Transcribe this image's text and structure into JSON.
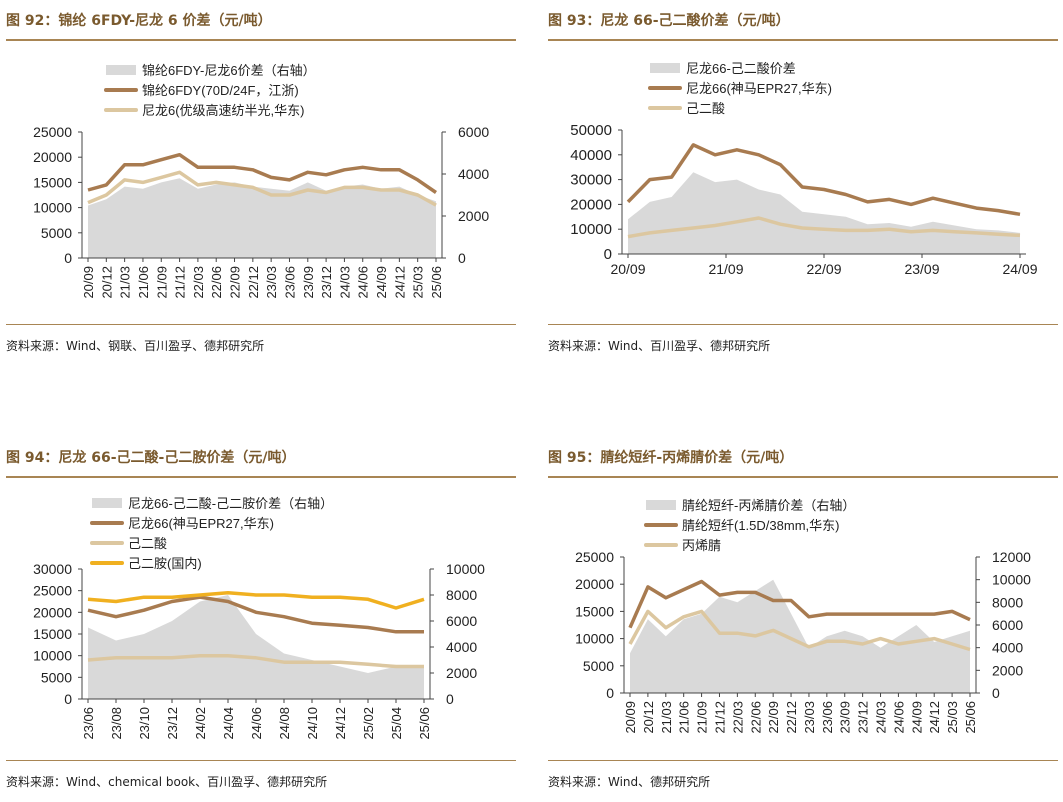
{
  "panels": [
    {
      "title": "图 92：锦纶 6FDY-尼龙 6 价差（元/吨）",
      "source": "资料来源：Wind、钢联、百川盈孚、德邦研究所",
      "chart_data": {
        "type": "line",
        "legend": [
          "锦纶6FDY-尼龙6价差（右轴）",
          "锦纶6FDY(70D/24F，江浙)",
          "尼龙6(优级高速纺半光,华东)"
        ],
        "left_axis": {
          "ylim": [
            0,
            25000
          ],
          "ticks": [
            "0",
            "5000",
            "10000",
            "15000",
            "20000",
            "25000"
          ]
        },
        "right_axis": {
          "ylim": [
            0,
            6000
          ],
          "ticks": [
            "0",
            "2000",
            "4000",
            "6000"
          ]
        },
        "x_ticks": [
          "20/09",
          "20/12",
          "21/03",
          "21/06",
          "21/09",
          "21/12",
          "22/03",
          "22/06",
          "22/09",
          "22/12",
          "23/03",
          "23/06",
          "23/09",
          "23/12",
          "24/03",
          "24/06",
          "24/09",
          "24/12",
          "25/03",
          "25/06"
        ],
        "series": [
          {
            "name": "锦纶6FDY(70D/24F，江浙)",
            "axis": "left",
            "color": "#a87b50",
            "values": [
              13500,
              14500,
              18500,
              18500,
              19500,
              20500,
              18000,
              18000,
              18000,
              17500,
              16000,
              15500,
              17000,
              16500,
              17500,
              18000,
              17500,
              17500,
              15500,
              13000
            ]
          },
          {
            "name": "尼龙6(优级高速纺半光,华东)",
            "axis": "left",
            "color": "#dcc7a0",
            "values": [
              11000,
              12500,
              15500,
              15000,
              16000,
              17000,
              14500,
              15000,
              14500,
              14000,
              12500,
              12500,
              13500,
              13000,
              14000,
              14000,
              13500,
              13500,
              12500,
              10500
            ]
          },
          {
            "name": "锦纶6FDY-尼龙6价差（右轴）",
            "axis": "right",
            "type": "area",
            "color": "#d9d9d9",
            "values": [
              2500,
              2800,
              3400,
              3300,
              3600,
              3800,
              3300,
              3500,
              3600,
              3400,
              3300,
              3200,
              3600,
              3200,
              3400,
              3500,
              3300,
              3400,
              3000,
              2700
            ]
          }
        ]
      }
    },
    {
      "title": "图 93：尼龙 66-己二酸价差（元/吨）",
      "source": "资料来源：Wind、百川盈孚、德邦研究所",
      "chart_data": {
        "type": "line",
        "legend": [
          "尼龙66-己二酸价差",
          "尼龙66(神马EPR27,华东)",
          "己二酸"
        ],
        "left_axis": {
          "ylim": [
            0,
            50000
          ],
          "ticks": [
            "0",
            "10000",
            "20000",
            "30000",
            "40000",
            "50000"
          ]
        },
        "x_ticks": [
          "20/09",
          "21/09",
          "22/09",
          "23/09",
          "24/09"
        ],
        "series": [
          {
            "name": "尼龙66(神马EPR27,华东)",
            "axis": "left",
            "color": "#a87b50",
            "values": [
              21000,
              30000,
              31000,
              44000,
              40000,
              42000,
              40000,
              36000,
              27000,
              26000,
              24000,
              21000,
              22000,
              20000,
              22500,
              20500,
              18500,
              17500,
              16000
            ]
          },
          {
            "name": "己二酸",
            "axis": "left",
            "color": "#dcc7a0",
            "values": [
              7000,
              8500,
              9500,
              10500,
              11500,
              13000,
              14500,
              12000,
              10500,
              10000,
              9500,
              9500,
              10000,
              9000,
              9500,
              9000,
              8500,
              8000,
              7500
            ]
          },
          {
            "name": "尼龙66-己二酸价差",
            "axis": "left",
            "type": "area",
            "color": "#d9d9d9",
            "values": [
              14000,
              21000,
              23000,
              33000,
              29000,
              30000,
              26000,
              24000,
              17000,
              16000,
              15000,
              12000,
              12500,
              11000,
              13000,
              11500,
              10000,
              9500,
              8500
            ]
          }
        ]
      }
    },
    {
      "title": "图 94：尼龙 66-己二酸-己二胺价差（元/吨）",
      "source": "资料来源：Wind、chemical book、百川盈孚、德邦研究所",
      "chart_data": {
        "type": "line",
        "legend": [
          "尼龙66-己二酸-己二胺价差（右轴）",
          "尼龙66(神马EPR27,华东)",
          "己二酸",
          "己二胺(国内)"
        ],
        "left_axis": {
          "ylim": [
            0,
            30000
          ],
          "ticks": [
            "0",
            "5000",
            "10000",
            "15000",
            "20000",
            "25000",
            "30000"
          ]
        },
        "right_axis": {
          "ylim": [
            0,
            10000
          ],
          "ticks": [
            "0",
            "2000",
            "4000",
            "6000",
            "8000",
            "10000"
          ]
        },
        "x_ticks": [
          "23/06",
          "23/08",
          "23/10",
          "23/12",
          "24/02",
          "24/04",
          "24/06",
          "24/08",
          "24/10",
          "24/12",
          "25/02",
          "25/04",
          "25/06"
        ],
        "series": [
          {
            "name": "尼龙66(神马EPR27,华东)",
            "axis": "left",
            "color": "#a87b50",
            "values": [
              20500,
              19000,
              20500,
              22500,
              23500,
              22500,
              20000,
              19000,
              17500,
              17000,
              16500,
              15500,
              15500
            ]
          },
          {
            "name": "己二酸",
            "axis": "left",
            "color": "#dcc7a0",
            "values": [
              9000,
              9500,
              9500,
              9500,
              10000,
              10000,
              9500,
              8500,
              8500,
              8500,
              8000,
              7500,
              7500
            ]
          },
          {
            "name": "己二胺(国内)",
            "axis": "left",
            "color": "#f0b020",
            "values": [
              23000,
              22500,
              23500,
              23500,
              24000,
              24500,
              24000,
              24000,
              23500,
              23500,
              23000,
              21000,
              23000
            ]
          },
          {
            "name": "尼龙66-己二酸-己二胺价差（右轴）",
            "axis": "right",
            "type": "area",
            "color": "#d9d9d9",
            "values": [
              5500,
              4500,
              5000,
              6000,
              7500,
              8000,
              5000,
              3500,
              3000,
              2500,
              2000,
              2500,
              2500
            ]
          }
        ]
      }
    },
    {
      "title": "图 95：腈纶短纤-丙烯腈价差（元/吨）",
      "source": "资料来源：Wind、德邦研究所",
      "chart_data": {
        "type": "line",
        "legend": [
          "腈纶短纤-丙烯腈价差（右轴）",
          "腈纶短纤(1.5D/38mm,华东)",
          "丙烯腈"
        ],
        "left_axis": {
          "ylim": [
            0,
            25000
          ],
          "ticks": [
            "0",
            "5000",
            "10000",
            "15000",
            "20000",
            "25000"
          ]
        },
        "right_axis": {
          "ylim": [
            0,
            12000
          ],
          "ticks": [
            "0",
            "2000",
            "4000",
            "6000",
            "8000",
            "10000",
            "12000"
          ]
        },
        "x_ticks": [
          "20/09",
          "20/12",
          "21/03",
          "21/06",
          "21/09",
          "21/12",
          "22/03",
          "22/06",
          "22/09",
          "22/12",
          "23/03",
          "23/06",
          "23/09",
          "23/12",
          "24/03",
          "24/06",
          "24/09",
          "24/12",
          "25/03",
          "25/06"
        ],
        "series": [
          {
            "name": "腈纶短纤(1.5D/38mm,华东)",
            "axis": "left",
            "color": "#a87b50",
            "values": [
              12000,
              19500,
              17500,
              19000,
              20500,
              18000,
              18500,
              18500,
              17000,
              17000,
              14000,
              14500,
              14500,
              14500,
              14500,
              14500,
              14500,
              14500,
              15000,
              13500
            ]
          },
          {
            "name": "丙烯腈",
            "axis": "left",
            "color": "#dcc7a0",
            "values": [
              9000,
              15000,
              12000,
              14000,
              15000,
              11000,
              11000,
              10500,
              11500,
              10000,
              8500,
              9500,
              9500,
              9000,
              10000,
              9000,
              9500,
              10000,
              9000,
              8000
            ]
          },
          {
            "name": "腈纶短纤-丙烯腈价差（右轴）",
            "axis": "right",
            "type": "area",
            "color": "#d9d9d9",
            "values": [
              3500,
              6500,
              5000,
              6500,
              7000,
              8500,
              8000,
              9000,
              10000,
              7000,
              4000,
              5000,
              5500,
              5000,
              4000,
              5000,
              6000,
              4500,
              5000,
              5500
            ]
          }
        ]
      }
    }
  ]
}
